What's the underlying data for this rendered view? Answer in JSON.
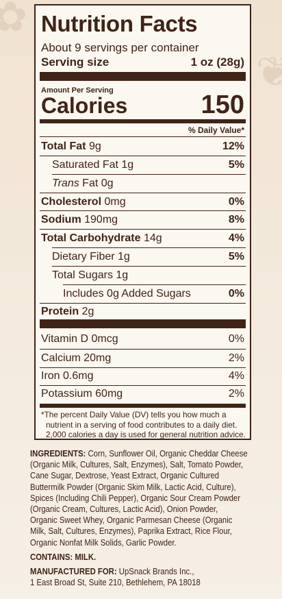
{
  "label": {
    "title": "Nutrition Facts",
    "servings": "About 9 servings per container",
    "serving_size": {
      "label": "Serving size",
      "value": "1 oz (28g)"
    },
    "amount_per_serving": "Amount Per Serving",
    "calories": {
      "label": "Calories",
      "value": "150"
    },
    "dv_header": "% Daily Value*",
    "nutrients": [
      {
        "name": "Total Fat",
        "amount": "9g",
        "dv": "12%"
      },
      {
        "name": "Saturated Fat",
        "amount": "1g",
        "dv": "5%"
      },
      {
        "prefix": "Trans",
        "name": "Fat",
        "amount": "0g"
      },
      {
        "name": "Cholesterol",
        "amount": "0mg",
        "dv": "0%"
      },
      {
        "name": "Sodium",
        "amount": "190mg",
        "dv": "8%"
      },
      {
        "name": "Total Carbohydrate",
        "amount": "14g",
        "dv": "4%"
      },
      {
        "name": "Dietary Fiber",
        "amount": "1g",
        "dv": "5%"
      },
      {
        "name": "Total Sugars",
        "amount": "1g"
      },
      {
        "name": "Includes 0g Added Sugars",
        "dv": "0%"
      },
      {
        "name": "Protein",
        "amount": "2g"
      }
    ],
    "vitamins": [
      {
        "name": "Vitamin D",
        "amount": "0mcg",
        "dv": "0%"
      },
      {
        "name": "Calcium",
        "amount": "20mg",
        "dv": "2%"
      },
      {
        "name": "Iron",
        "amount": "0.6mg",
        "dv": "4%"
      },
      {
        "name": "Potassium",
        "amount": "60mg",
        "dv": "2%"
      }
    ],
    "footnote": [
      "*The percent Daily Value (DV) tells you how much a",
      "nutrient in a serving of food contributes to a daily diet.",
      "2,000 calories a day is used for general nutrition advice."
    ]
  },
  "ingredients": {
    "label": "INGREDIENTS:",
    "lines": [
      "Corn, Sunflower Oil, Organic Cheddar Cheese",
      "(Organic Milk, Cultures, Salt, Enzymes), Salt, Tomato Powder,",
      "Cane Sugar, Dextrose, Yeast Extract, Organic Cultured",
      "Buttermilk Powder (Organic Skim Milk, Lactic Acid, Culture),",
      "Spices (Including Chili Pepper), Organic Sour Cream Powder",
      "(Organic Cream, Cultures, Lactic Acid), Onion Powder,",
      "Organic Sweet Whey, Organic Parmesan Cheese (Organic",
      "Milk, Salt, Cultures, Enzymes), Paprika Extract, Rice Flour,",
      "Organic Nonfat Milk Solids, Garlic Powder."
    ]
  },
  "contains": {
    "label": "CONTAINS:",
    "value": "MILK."
  },
  "manufacturer": {
    "label": "MANUFACTURED FOR:",
    "lines": [
      "UpSnack Brands Inc.,",
      "1 East Broad St, Suite 210, Bethlehem, PA 18018"
    ]
  }
}
